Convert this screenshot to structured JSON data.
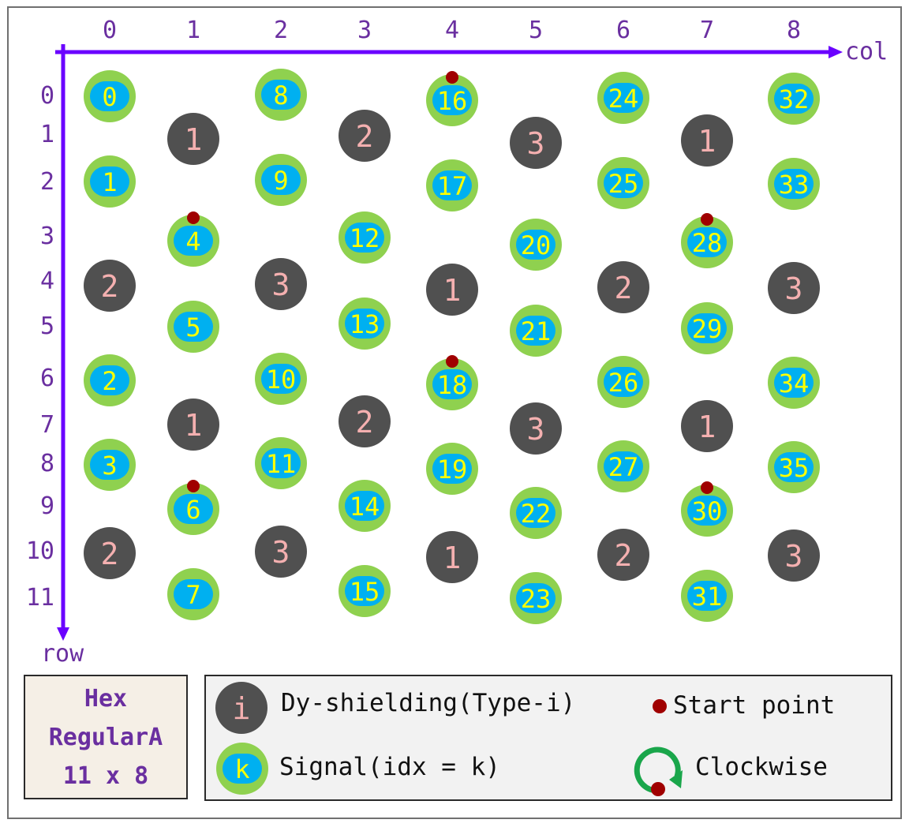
{
  "columns": [
    "0",
    "1",
    "2",
    "3",
    "4",
    "5",
    "6",
    "7",
    "8"
  ],
  "rows": [
    "0",
    "1",
    "2",
    "3",
    "4",
    "5",
    "6",
    "7",
    "8",
    "9",
    "10",
    "11"
  ],
  "axis": {
    "col_label": "col",
    "row_label": "row"
  },
  "title_box": {
    "line1": "Hex",
    "line2": "RegularA",
    "line3": "11 x 8"
  },
  "legend": {
    "shield_symbol": "i",
    "shield_label": "Dy-shielding(Type-i)",
    "signal_symbol": "k",
    "signal_label": "Signal(idx = k)",
    "start_label": "Start point",
    "clockwise_label": "Clockwise"
  },
  "colors": {
    "axis": "#6a00ff",
    "signal_outer": "#8fd14f",
    "signal_inner": "#00b0f0",
    "signal_text": "#ffff00",
    "shield_fill": "#505050",
    "shield_text": "#f4b0b0",
    "start_point": "#a00000",
    "clockwise_arrow": "#1aa64b"
  },
  "signals": [
    {
      "label": "0",
      "col": 0,
      "row": 0.0
    },
    {
      "label": "1",
      "col": 0,
      "row": 2.0
    },
    {
      "label": "2",
      "col": 0,
      "row": 6.0
    },
    {
      "label": "3",
      "col": 0,
      "row": 8.0
    },
    {
      "label": "4",
      "col": 1,
      "row": 3.0,
      "start": true
    },
    {
      "label": "5",
      "col": 1,
      "row": 5.0
    },
    {
      "label": "6",
      "col": 1,
      "row": 9.0,
      "start": true
    },
    {
      "label": "7",
      "col": 1,
      "row": 11.0
    },
    {
      "label": "8",
      "col": 2,
      "row": 0.0
    },
    {
      "label": "9",
      "col": 2,
      "row": 2.0
    },
    {
      "label": "10",
      "col": 2,
      "row": 6.0
    },
    {
      "label": "11",
      "col": 2,
      "row": 8.0
    },
    {
      "label": "12",
      "col": 3,
      "row": 3.0
    },
    {
      "label": "13",
      "col": 3,
      "row": 5.0
    },
    {
      "label": "14",
      "col": 3,
      "row": 9.0
    },
    {
      "label": "15",
      "col": 3,
      "row": 11.0
    },
    {
      "label": "16",
      "col": 4,
      "row": 0.0,
      "start": true
    },
    {
      "label": "17",
      "col": 4,
      "row": 2.0
    },
    {
      "label": "18",
      "col": 4,
      "row": 6.0,
      "start": true
    },
    {
      "label": "19",
      "col": 4,
      "row": 8.0
    },
    {
      "label": "20",
      "col": 5,
      "row": 3.0
    },
    {
      "label": "21",
      "col": 5,
      "row": 5.0
    },
    {
      "label": "22",
      "col": 5,
      "row": 9.0
    },
    {
      "label": "23",
      "col": 5,
      "row": 11.0
    },
    {
      "label": "24",
      "col": 6,
      "row": 0.0
    },
    {
      "label": "25",
      "col": 6,
      "row": 2.0
    },
    {
      "label": "26",
      "col": 6,
      "row": 6.0
    },
    {
      "label": "27",
      "col": 6,
      "row": 8.0
    },
    {
      "label": "28",
      "col": 7,
      "row": 3.0,
      "start": true
    },
    {
      "label": "29",
      "col": 7,
      "row": 5.0
    },
    {
      "label": "30",
      "col": 7,
      "row": 9.0,
      "start": true
    },
    {
      "label": "31",
      "col": 7,
      "row": 11.0
    },
    {
      "label": "32",
      "col": 8,
      "row": 0.0
    },
    {
      "label": "33",
      "col": 8,
      "row": 2.0
    },
    {
      "label": "34",
      "col": 8,
      "row": 6.0
    },
    {
      "label": "35",
      "col": 8,
      "row": 8.0
    }
  ],
  "shields": [
    {
      "label": "2",
      "col": 0,
      "row": 4
    },
    {
      "label": "2",
      "col": 0,
      "row": 10
    },
    {
      "label": "1",
      "col": 1,
      "row": 1
    },
    {
      "label": "1",
      "col": 1,
      "row": 7
    },
    {
      "label": "3",
      "col": 2,
      "row": 4
    },
    {
      "label": "3",
      "col": 2,
      "row": 10
    },
    {
      "label": "2",
      "col": 3,
      "row": 1
    },
    {
      "label": "2",
      "col": 3,
      "row": 7
    },
    {
      "label": "1",
      "col": 4,
      "row": 4
    },
    {
      "label": "1",
      "col": 4,
      "row": 10
    },
    {
      "label": "3",
      "col": 5,
      "row": 1
    },
    {
      "label": "3",
      "col": 5,
      "row": 7
    },
    {
      "label": "2",
      "col": 6,
      "row": 4
    },
    {
      "label": "2",
      "col": 6,
      "row": 10
    },
    {
      "label": "1",
      "col": 7,
      "row": 1
    },
    {
      "label": "1",
      "col": 7,
      "row": 7
    },
    {
      "label": "3",
      "col": 8,
      "row": 4
    },
    {
      "label": "3",
      "col": 8,
      "row": 10
    }
  ]
}
